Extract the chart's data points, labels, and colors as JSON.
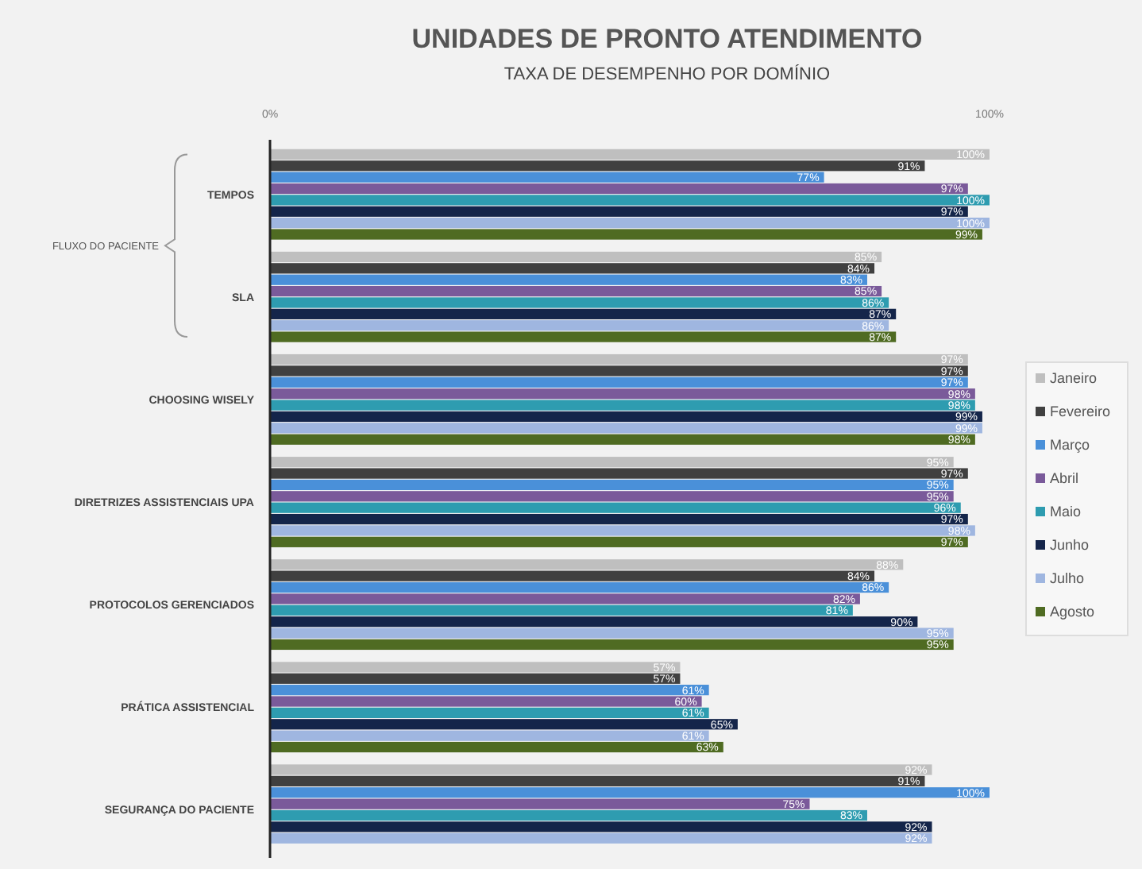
{
  "chart_data": {
    "type": "bar",
    "orientation": "horizontal",
    "title": "UNIDADES DE PRONTO ATENDIMENTO",
    "subtitle": "TAXA DE DESEMPENHO POR DOMÍNIO",
    "categories": [
      "TEMPOS",
      "SLA",
      "CHOOSING WISELY",
      "DIRETRIZES ASSISTENCIAIS UPA",
      "PROTOCOLOS GERENCIADOS",
      "PRÁTICA ASSISTENCIAL",
      "SEGURANÇA DO PACIENTE"
    ],
    "xlim": [
      0,
      100
    ],
    "xticks": [
      {
        "value": 0,
        "label": "0%"
      },
      {
        "value": 100,
        "label": "100%"
      }
    ],
    "annotations": [
      "FLUXO DO PACIENTE"
    ],
    "legend": "right",
    "grid": false,
    "series": [
      {
        "name": "Janeiro",
        "color": "#bfbfbf",
        "values": [
          100,
          85,
          97,
          95,
          88,
          57,
          92
        ],
        "value_labels": [
          "100%",
          "85%",
          "97%",
          "95%",
          "88%",
          "57%",
          "92%"
        ]
      },
      {
        "name": "Fevereiro",
        "color": "#404040",
        "values": [
          91,
          84,
          97,
          97,
          84,
          57,
          91
        ],
        "value_labels": [
          "91%",
          "84%",
          "97%",
          "97%",
          "84%",
          "57%",
          "91%"
        ]
      },
      {
        "name": "Março",
        "color": "#4a90d9",
        "values": [
          77,
          83,
          97,
          95,
          86,
          61,
          100
        ],
        "value_labels": [
          "77%",
          "83%",
          "97%",
          "95%",
          "86%",
          "61%",
          "100%"
        ]
      },
      {
        "name": "Abril",
        "color": "#7a5a9a",
        "values": [
          97,
          85,
          98,
          95,
          82,
          60,
          75
        ],
        "value_labels": [
          "97%",
          "85%",
          "98%",
          "95%",
          "82%",
          "60%",
          "75%"
        ]
      },
      {
        "name": "Maio",
        "color": "#2e9cb0",
        "values": [
          100,
          86,
          98,
          96,
          81,
          61,
          83
        ],
        "value_labels": [
          "100%",
          "86%",
          "98%",
          "96%",
          "81%",
          "61%",
          "83%"
        ]
      },
      {
        "name": "Junho",
        "color": "#14254a",
        "values": [
          97,
          87,
          99,
          97,
          90,
          65,
          92
        ],
        "value_labels": [
          "97%",
          "87%",
          "99%",
          "97%",
          "90%",
          "65%",
          "92%"
        ]
      },
      {
        "name": "Julho",
        "color": "#9fb6e0",
        "values": [
          100,
          86,
          99,
          98,
          95,
          61,
          92
        ],
        "value_labels": [
          "100%",
          "86%",
          "99%",
          "98%",
          "95%",
          "61%",
          "92%"
        ]
      },
      {
        "name": "Agosto",
        "color": "#4f6b22",
        "values": [
          99,
          87,
          98,
          97,
          95,
          63,
          null
        ],
        "value_labels": [
          "99%",
          "87%",
          "98%",
          "97%",
          "95%",
          "63%",
          null
        ]
      }
    ]
  }
}
